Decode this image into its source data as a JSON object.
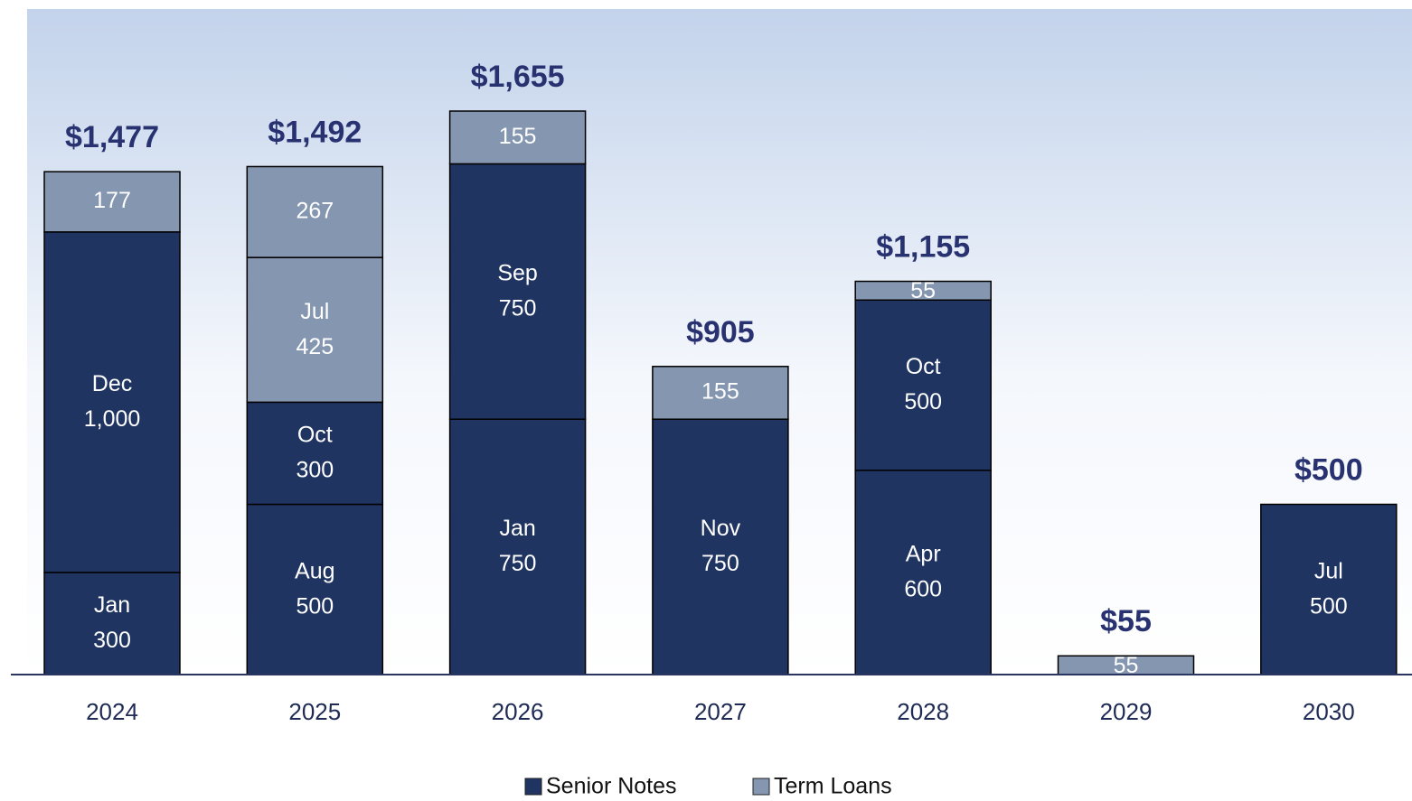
{
  "chart_data": {
    "type": "stacked-bar",
    "categories": [
      "2024",
      "2025",
      "2026",
      "2027",
      "2028",
      "2029",
      "2030"
    ],
    "series": [
      {
        "name": "Senior Notes",
        "color": "#1f3461",
        "stacks": [
          [
            {
              "month": "Jan",
              "value": 300
            },
            {
              "month": "Dec",
              "value": 1000,
              "value_label": "1,000"
            }
          ],
          [
            {
              "month": "Aug",
              "value": 500
            },
            {
              "month": "Oct",
              "value": 300
            }
          ],
          [
            {
              "month": "Jan",
              "value": 750
            },
            {
              "month": "Sep",
              "value": 750
            }
          ],
          [
            {
              "month": "Nov",
              "value": 750
            }
          ],
          [
            {
              "month": "Apr",
              "value": 600
            },
            {
              "month": "Oct",
              "value": 500
            }
          ],
          [],
          [
            {
              "month": "Jul",
              "value": 500
            }
          ]
        ]
      },
      {
        "name": "Term Loans",
        "color": "#8496b0",
        "stacks": [
          [
            {
              "value": 177
            }
          ],
          [
            {
              "month": "Jul",
              "value": 425
            },
            {
              "value": 267
            }
          ],
          [
            {
              "value": 155
            }
          ],
          [
            {
              "value": 155
            }
          ],
          [
            {
              "value": 55
            }
          ],
          [
            {
              "value": 55
            }
          ],
          []
        ]
      }
    ],
    "totals": [
      1477,
      1492,
      1655,
      905,
      1155,
      55,
      500
    ],
    "total_labels": [
      "$1,477",
      "$1,492",
      "$1,655",
      "$905",
      "$1,155",
      "$55",
      "$500"
    ]
  }
}
